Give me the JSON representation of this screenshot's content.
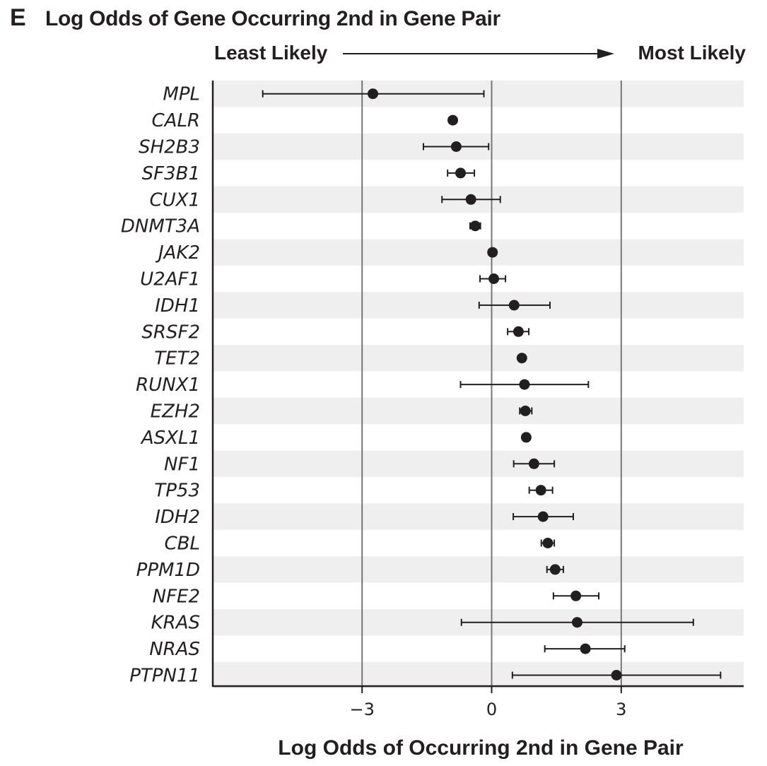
{
  "panel_letter": "E",
  "arrow": {
    "left_label": "Least Likely",
    "right_label": "Most Likely"
  },
  "colors": {
    "band": "#efefef",
    "ink": "#231f20",
    "gridline": "#777777"
  },
  "chart_data": {
    "type": "scatter",
    "title": "Log Odds of Gene Occurring 2nd in Gene Pair",
    "xlabel": "Log Odds of Occurring 2nd in Gene Pair",
    "ylabel": "",
    "xlim": [
      -6.2,
      6.1
    ],
    "xticks": [
      -3,
      0,
      3
    ],
    "xtick_labels": [
      "−3",
      "0",
      "3"
    ],
    "reference_lines": [
      -3,
      0,
      3
    ],
    "alternating_row_bands": true,
    "genes": [
      "MPL",
      "CALR",
      "SH2B3",
      "SF3B1",
      "CUX1",
      "DNMT3A",
      "JAK2",
      "U2AF1",
      "IDH1",
      "SRSF2",
      "TET2",
      "RUNX1",
      "EZH2",
      "ASXL1",
      "NF1",
      "TP53",
      "IDH2",
      "CBL",
      "PPM1D",
      "NFE2",
      "KRAS",
      "NRAS",
      "PTPN11"
    ],
    "estimate": [
      -2.75,
      -0.9,
      -0.82,
      -0.72,
      -0.48,
      -0.38,
      0.02,
      0.05,
      0.52,
      0.62,
      0.7,
      0.76,
      0.78,
      0.8,
      0.98,
      1.14,
      1.19,
      1.3,
      1.47,
      1.95,
      1.98,
      2.17,
      2.89
    ],
    "ci_low": [
      -5.3,
      -0.95,
      -1.58,
      -1.02,
      -1.15,
      -0.5,
      -0.06,
      -0.27,
      -0.29,
      0.37,
      0.64,
      -0.72,
      0.65,
      0.75,
      0.51,
      0.87,
      0.5,
      1.15,
      1.28,
      1.43,
      -0.7,
      1.23,
      0.48
    ],
    "ci_high": [
      -0.18,
      -0.85,
      -0.07,
      -0.4,
      0.2,
      -0.26,
      0.1,
      0.32,
      1.35,
      0.86,
      0.76,
      2.24,
      0.93,
      0.85,
      1.45,
      1.41,
      1.89,
      1.45,
      1.66,
      2.48,
      4.67,
      3.08,
      5.3
    ]
  }
}
